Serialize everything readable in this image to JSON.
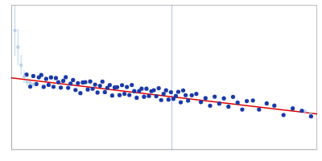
{
  "chart_data": {
    "type": "scatter",
    "xlim": [
      0,
      1
    ],
    "ylim": [
      -0.38,
      0.75
    ],
    "tick_labels": false,
    "grid": false,
    "series": [
      {
        "type": "line",
        "color": "#dd0000",
        "x": [
          0,
          1
        ],
        "values": [
          0.18,
          -0.1
        ]
      },
      {
        "type": "scatter",
        "color": "#aac4e0",
        "x": [
          0.012,
          0.022,
          0.032,
          0.042,
          0.052,
          0.062,
          0.072
        ],
        "values": [
          0.55,
          0.42,
          0.28,
          0.19,
          0.15,
          0.14,
          0.13
        ],
        "error": [
          0.2,
          0.14,
          0.08,
          0.05,
          0.03,
          0.02,
          0.015
        ]
      },
      {
        "type": "scatter",
        "color": "#1a3aaa",
        "x": [
          0.05,
          0.062,
          0.072,
          0.082,
          0.09,
          0.098,
          0.106,
          0.114,
          0.122,
          0.13,
          0.138,
          0.146,
          0.154,
          0.162,
          0.17,
          0.178,
          0.186,
          0.194,
          0.202,
          0.21,
          0.218,
          0.226,
          0.234,
          0.242,
          0.25,
          0.258,
          0.266,
          0.274,
          0.282,
          0.29,
          0.298,
          0.306,
          0.314,
          0.322,
          0.33,
          0.338,
          0.346,
          0.354,
          0.362,
          0.37,
          0.378,
          0.386,
          0.394,
          0.402,
          0.41,
          0.418,
          0.426,
          0.434,
          0.442,
          0.45,
          0.458,
          0.466,
          0.474,
          0.482,
          0.49,
          0.498,
          0.506,
          0.514,
          0.522,
          0.53,
          0.538,
          0.546,
          0.554,
          0.562,
          0.57,
          0.578,
          0.59,
          0.605,
          0.62,
          0.635,
          0.65,
          0.665,
          0.68,
          0.695,
          0.71,
          0.725,
          0.74,
          0.755,
          0.77,
          0.79,
          0.81,
          0.835,
          0.86,
          0.89,
          0.92,
          0.95,
          0.98
        ],
        "values": [
          0.206,
          0.11264,
          0.19484,
          0.13204,
          0.1848,
          0.20256,
          0.11032,
          0.17308,
          0.12584,
          0.1836,
          0.11136,
          0.17912,
          0.14688,
          0.10464,
          0.1574,
          0.18516,
          0.10292,
          0.13568,
          0.16344,
          0.0862,
          0.13896,
          0.06172,
          0.14448,
          0.14724,
          0.09,
          0.15276,
          0.09552,
          0.12828,
          0.06604,
          0.1188,
          0.15156,
          0.06932,
          0.10208,
          0.12484,
          0.0426,
          0.10536,
          0.10812,
          0.04588,
          0.12364,
          0.0564,
          0.10916,
          0.04692,
          0.12468,
          0.07744,
          0.0252,
          0.07796,
          0.09572,
          0.03348,
          0.09624,
          0.039,
          0.07676,
          0.08452,
          0.03728,
          0.10004,
          0.0078,
          0.05556,
          0.08332,
          0.01108,
          0.06884,
          0.0166,
          0.03936,
          0.07212,
          -0.01012,
          0.08264,
          0.0454,
          0.00316,
          0.0448,
          0.0556,
          -0.0086,
          0.0222,
          -0.037,
          0.0338,
          -0.0204,
          0.0204,
          -0.0438,
          0.032,
          -0.0122,
          -0.0664,
          -0.0006,
          0.0038,
          -0.0668,
          -0.0188,
          -0.0358,
          -0.1092,
          -0.0576,
          -0.076,
          -0.1194
        ]
      },
      {
        "type": "scatter",
        "color": "#aac4e0",
        "x": [
          0.96,
          0.978
        ],
        "values": [
          -0.0808,
          -0.09884
        ]
      }
    ],
    "vlines": [
      {
        "x": 0.525,
        "color": "#aac8e8"
      }
    ]
  }
}
